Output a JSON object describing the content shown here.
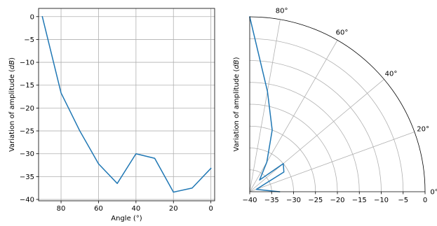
{
  "colors": {
    "series": "#1f77b4",
    "grid": "#b0b0b0",
    "axes": "#000000"
  },
  "chart_data": [
    {
      "type": "line",
      "xlabel": "Angle (°)",
      "ylabel_prefix": "Variation of amplitude (",
      "ylabel_unit": "dB",
      "ylabel_suffix": ")",
      "xlim": [
        92,
        -2
      ],
      "ylim": [
        -40.3,
        1.8
      ],
      "xticks": [
        80,
        60,
        40,
        20,
        0
      ],
      "xtick_labels": [
        "80",
        "60",
        "40",
        "20",
        "0"
      ],
      "yticks": [
        0,
        -5,
        -10,
        -15,
        -20,
        -25,
        -30,
        -35,
        -40
      ],
      "ytick_labels": [
        "0",
        "−5",
        "−10",
        "−15",
        "−20",
        "−25",
        "−30",
        "−35",
        "−40"
      ],
      "grid": true,
      "series": [
        {
          "x": [
            90,
            80,
            70,
            60,
            50,
            40,
            30,
            20,
            10,
            0
          ],
          "values": [
            0,
            -16.7,
            -25,
            -32.2,
            -36.5,
            -30,
            -31,
            -38.4,
            -37.5,
            -33.2
          ]
        }
      ]
    },
    {
      "type": "polar-line",
      "ylabel_prefix": "Variation of amplitude (",
      "ylabel_unit": "dB",
      "ylabel_suffix": ")",
      "theta_range": [
        0,
        90
      ],
      "r_range": [
        -40,
        0
      ],
      "theta_ticks": [
        0,
        20,
        40,
        60,
        80
      ],
      "theta_tick_labels": [
        "0°",
        "20°",
        "40°",
        "60°",
        "80°"
      ],
      "r_ticks": [
        -40,
        -35,
        -30,
        -25,
        -20,
        -15,
        -10,
        -5,
        0
      ],
      "r_tick_labels": [
        "−40",
        "−35",
        "−30",
        "−25",
        "−20",
        "−15",
        "−10",
        "−5",
        "0"
      ],
      "grid": true,
      "series": [
        {
          "theta": [
            90,
            80,
            70,
            60,
            50,
            40,
            30,
            20,
            10,
            0
          ],
          "values": [
            0,
            -16.7,
            -25,
            -32.2,
            -36.5,
            -30,
            -31,
            -38.4,
            -37.5,
            -33.2
          ]
        }
      ]
    }
  ]
}
